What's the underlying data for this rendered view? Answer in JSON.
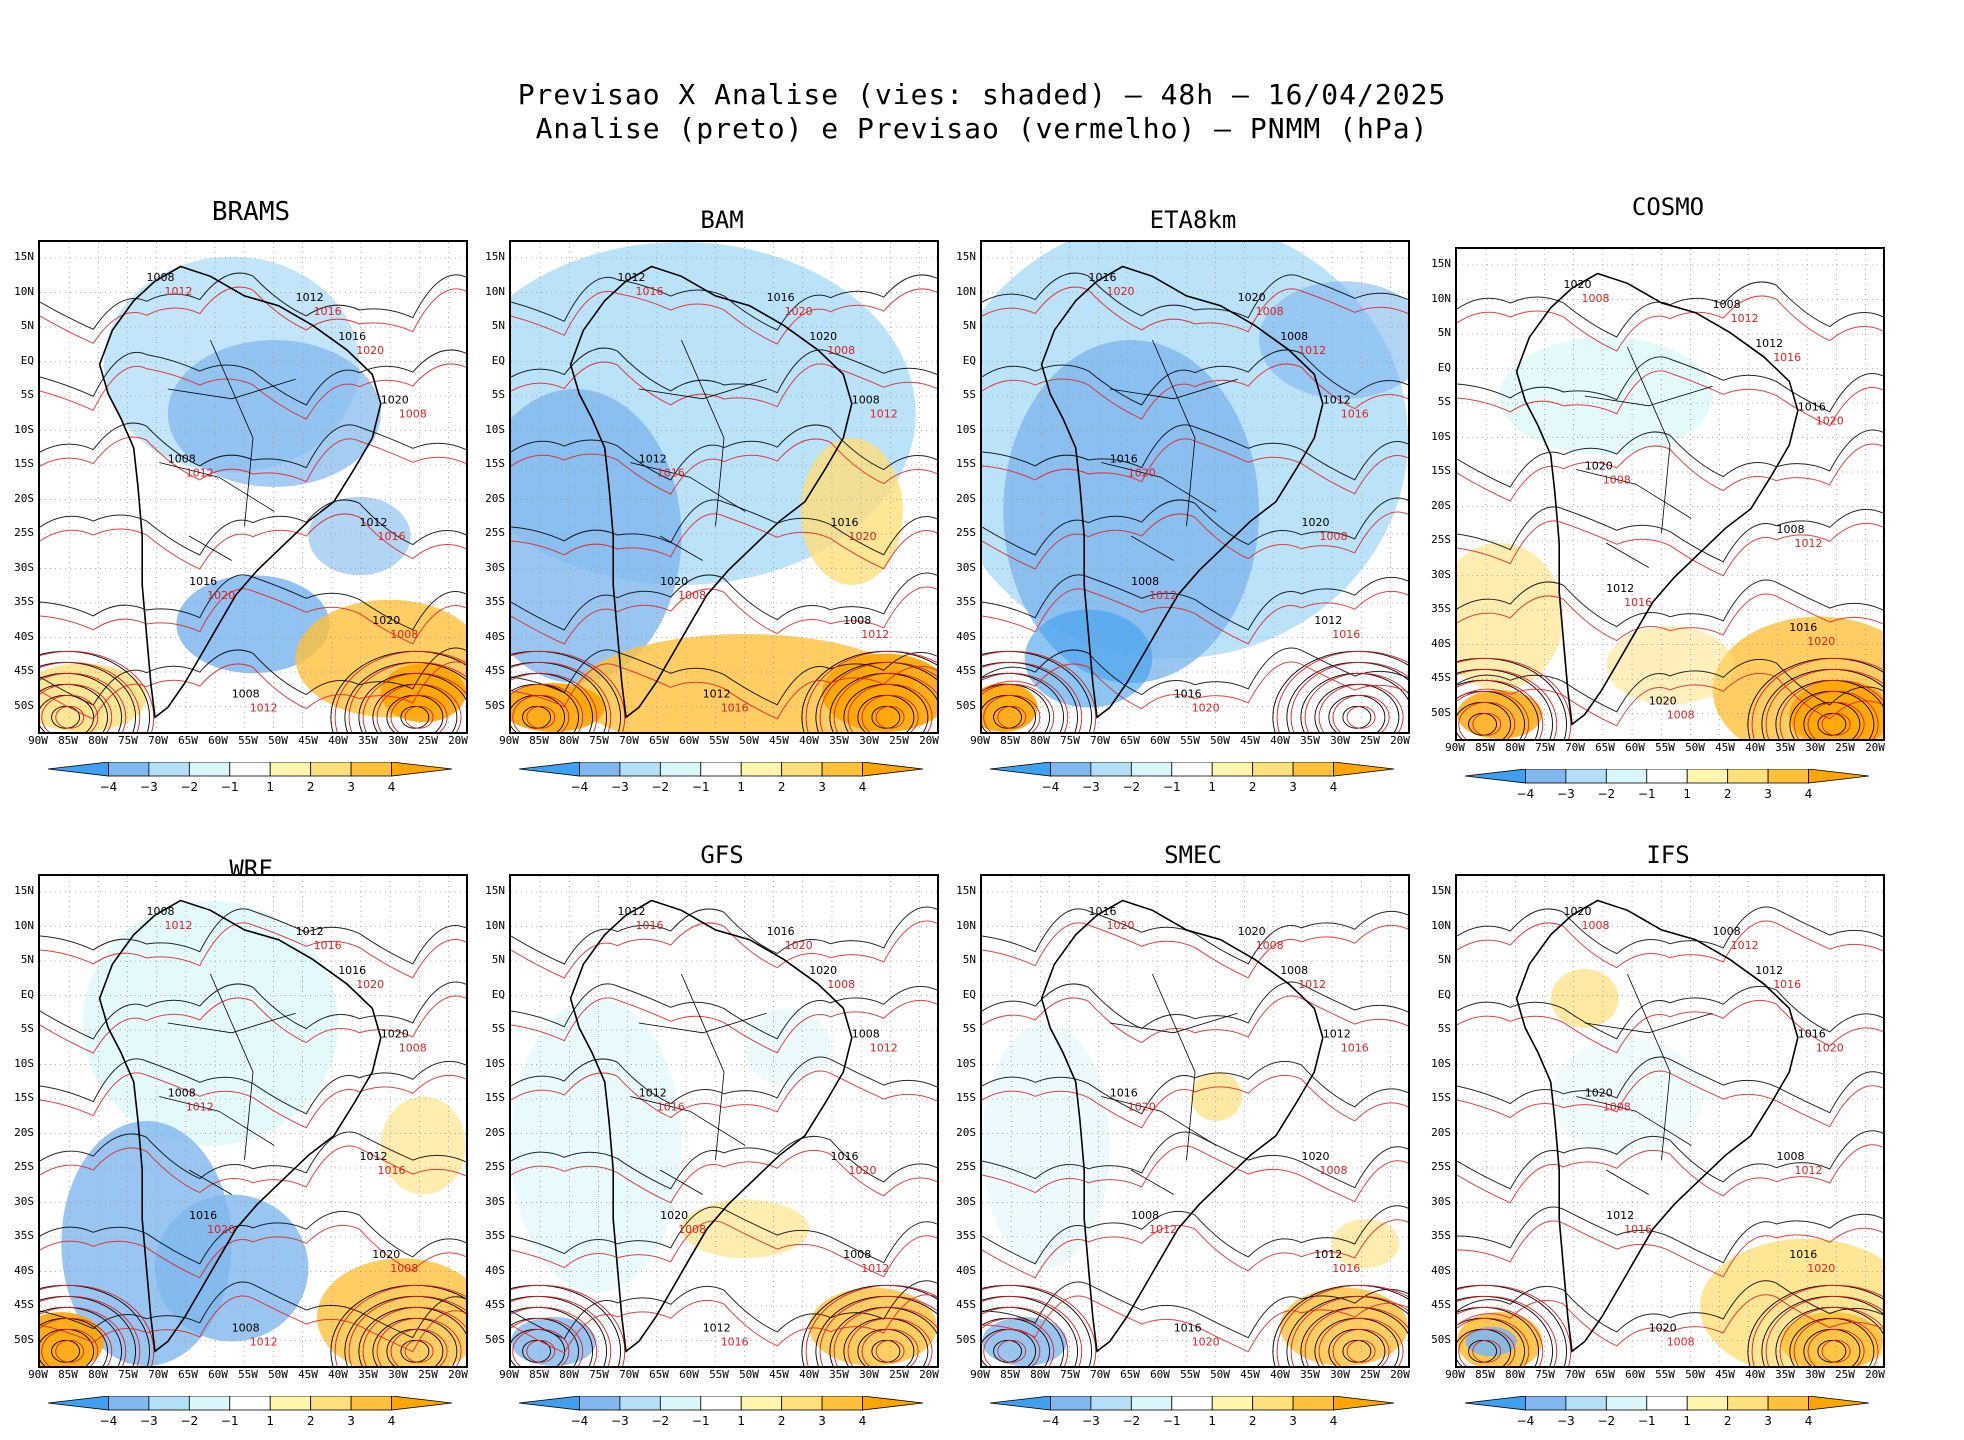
{
  "header": {
    "line1": "Previsao X Analise (vies: shaded) – 48h – 16/04/2025",
    "line2": "Analise (preto) e Previsao (vermelho) – PNMM (hPa)"
  },
  "panels": [
    {
      "name": "BRAMS"
    },
    {
      "name": "BAM"
    },
    {
      "name": "ETA8km"
    },
    {
      "name": "COSMO"
    },
    {
      "name": "WRF"
    },
    {
      "name": "GFS"
    },
    {
      "name": "SMEC"
    },
    {
      "name": "IFS"
    }
  ],
  "lat_labels": [
    "15N",
    "10N",
    "5N",
    "EQ",
    "5S",
    "10S",
    "15S",
    "20S",
    "25S",
    "30S",
    "35S",
    "40S",
    "45S",
    "50S"
  ],
  "lon_labels": [
    "90W",
    "85W",
    "80W",
    "75W",
    "70W",
    "65W",
    "60W",
    "55W",
    "50W",
    "45W",
    "40W",
    "35W",
    "30W",
    "25W",
    "20W"
  ],
  "colorbar": {
    "labels": [
      "−4",
      "−3",
      "−2",
      "−1",
      "1",
      "2",
      "3",
      "4"
    ],
    "colors": [
      "#3ea0ee",
      "#7fb7ee",
      "#b3dff8",
      "#d9f6fb",
      "#ffffff",
      "#fff6ad",
      "#ffe07a",
      "#ffc13a",
      "#ffa500"
    ]
  },
  "contour_labels": {
    "analysis": [
      "1008",
      "1012",
      "1016",
      "1020"
    ],
    "forecast": [
      "1008",
      "1012",
      "1016",
      "1020"
    ]
  },
  "colors": {
    "analysis": "#000000",
    "forecast": "#e02020",
    "grid": "#999999"
  }
}
